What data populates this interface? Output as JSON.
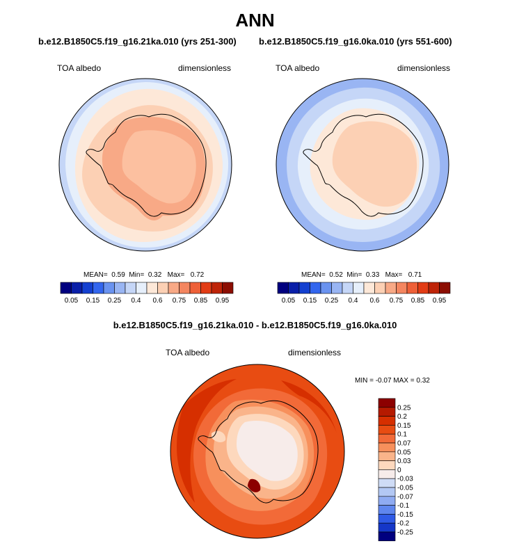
{
  "title": "ANN",
  "panels": [
    {
      "case": "b.e12.B1850C5.f19_g16.21ka.010 (yrs 251-300)",
      "left_label": "TOA albedo",
      "right_label": "dimensionless",
      "stats": {
        "mean_label": "MEAN=",
        "mean": "0.59",
        "min_label": "Min=",
        "min": "0.32",
        "max_label": "Max=",
        "max": "0.72"
      }
    },
    {
      "case": "b.e12.B1850C5.f19_g16.0ka.010 (yrs 551-600)",
      "left_label": "TOA albedo",
      "right_label": "dimensionless",
      "stats": {
        "mean_label": "MEAN=",
        "mean": "0.52",
        "min_label": "Min=",
        "min": "0.33",
        "max_label": "Max=",
        "max": "0.71"
      }
    }
  ],
  "colorbar": {
    "colors": [
      "#00007f",
      "#0a1fa8",
      "#1440d0",
      "#3366ee",
      "#6a93f0",
      "#99b5f3",
      "#c5d6f7",
      "#e6effb",
      "#fde8d8",
      "#fcd0b4",
      "#f8a986",
      "#f48660",
      "#ee6038",
      "#e23c15",
      "#be2408",
      "#8c0e02"
    ],
    "labels": [
      "0.05",
      "0.15",
      "0.25",
      "0.4",
      "0.6",
      "0.75",
      "0.85",
      "0.95"
    ]
  },
  "difference": {
    "title": "b.e12.B1850C5.f19_g16.21ka.010 - b.e12.B1850C5.f19_g16.0ka.010",
    "left_label": "TOA albedo",
    "right_label": "dimensionless",
    "minmax_text": "MIN = -0.07 MAX = 0.32",
    "colorbar_colors": [
      "#8c0000",
      "#b51a00",
      "#d62f00",
      "#e84c12",
      "#f26a38",
      "#f7905c",
      "#fab48a",
      "#fdd8bd",
      "#f7ecea",
      "#cfdcf6",
      "#b3c8f4",
      "#8fabf2",
      "#5f86ee",
      "#2f5ae6",
      "#1537c8",
      "#00007f"
    ],
    "colorbar_labels": [
      "0.25",
      "0.2",
      "0.15",
      "0.1",
      "0.07",
      "0.05",
      "0.03",
      "0",
      "-0.03",
      "-0.05",
      "-0.07",
      "-0.1",
      "-0.15",
      "-0.2",
      "-0.25"
    ]
  }
}
